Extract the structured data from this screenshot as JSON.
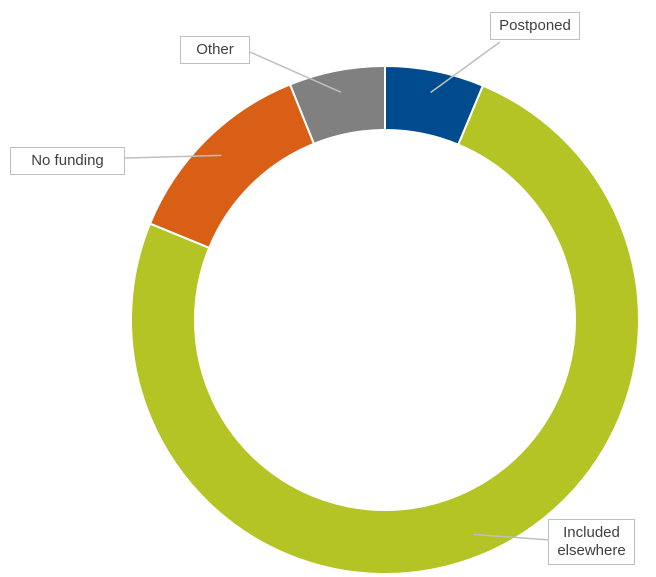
{
  "chart_data": {
    "type": "donut",
    "categories": [
      "Postponed",
      "Included elsewhere",
      "No funding",
      "Other"
    ],
    "values": [
      6.3,
      74.9,
      12.7,
      6.1
    ],
    "colors": [
      "#004b8d",
      "#b4c424",
      "#d95f17",
      "#808080"
    ]
  }
}
